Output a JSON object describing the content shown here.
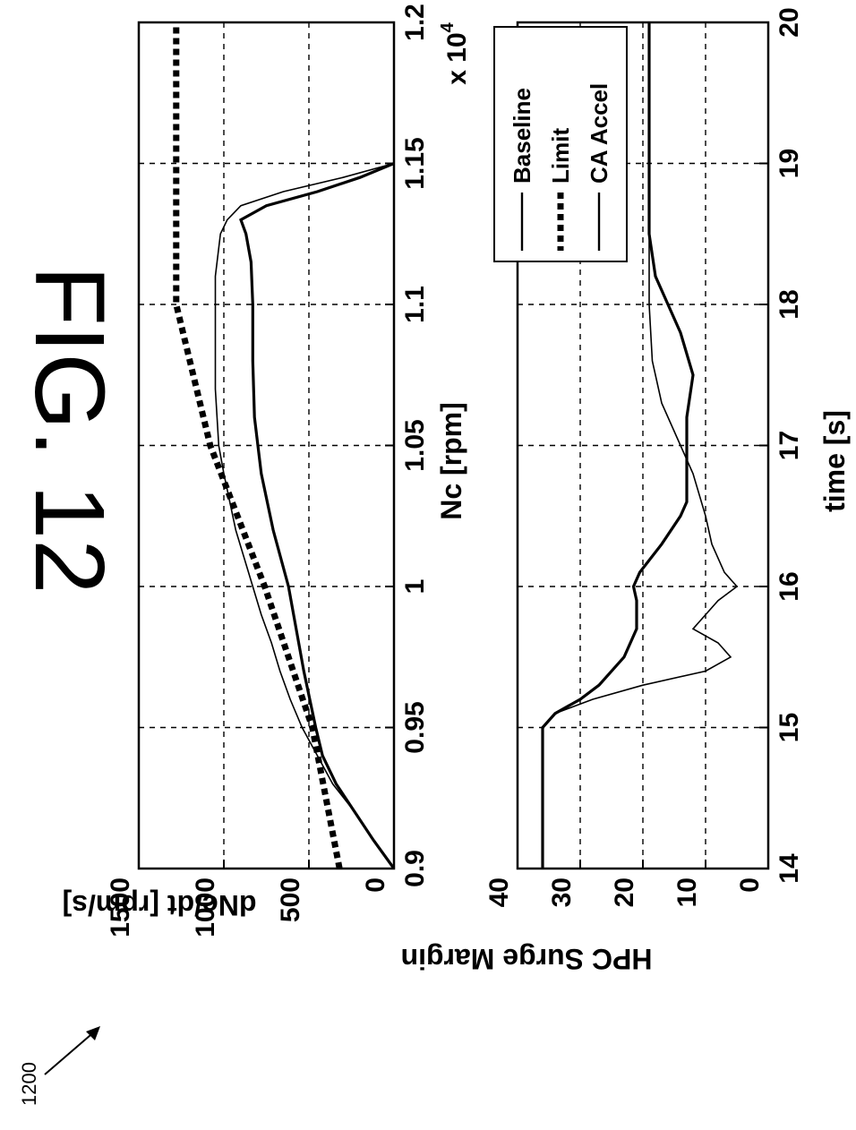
{
  "figure": {
    "title": "FIG. 12",
    "ref": "1200"
  },
  "chart_data": [
    {
      "type": "line",
      "xlabel": "Nc [rpm]",
      "ylabel": "dNc/dt [rpm/s]",
      "x_multiplier": "x 10",
      "x_multiplier_exp": "4",
      "xlim": [
        0.9,
        1.2
      ],
      "ylim": [
        0,
        1500
      ],
      "xticks": [
        0.9,
        0.95,
        1,
        1.05,
        1.1,
        1.15,
        1.2
      ],
      "xtick_labels": [
        "0.9",
        "0.95",
        "1",
        "1.05",
        "1.1",
        "1.15",
        "1.2"
      ],
      "yticks": [
        0,
        500,
        1000,
        1500
      ],
      "ytick_labels": [
        "0",
        "500",
        "1000",
        "1500"
      ],
      "grid": true,
      "series": [
        {
          "name": "Baseline",
          "style": "thin",
          "x": [
            0.9,
            0.91,
            0.92,
            0.93,
            0.94,
            0.95,
            0.96,
            0.97,
            0.98,
            0.99,
            1.0,
            1.02,
            1.04,
            1.05,
            1.07,
            1.09,
            1.11,
            1.125,
            1.13,
            1.135,
            1.14,
            1.145,
            1.15
          ],
          "y": [
            0,
            120,
            230,
            360,
            450,
            540,
            610,
            670,
            720,
            780,
            830,
            930,
            1000,
            1030,
            1050,
            1050,
            1050,
            1020,
            980,
            900,
            650,
            300,
            0
          ]
        },
        {
          "name": "Limit",
          "style": "dotted",
          "x": [
            0.9,
            0.95,
            1.0,
            1.05,
            1.1,
            1.15,
            1.2
          ],
          "y": [
            320,
            480,
            760,
            1080,
            1280,
            1280,
            1280
          ]
        },
        {
          "name": "CA Accel",
          "style": "thick",
          "x": [
            0.9,
            0.91,
            0.92,
            0.93,
            0.94,
            0.95,
            0.97,
            1.0,
            1.02,
            1.04,
            1.06,
            1.08,
            1.1,
            1.115,
            1.125,
            1.13,
            1.135,
            1.14,
            1.145,
            1.15
          ],
          "y": [
            0,
            120,
            230,
            340,
            420,
            460,
            530,
            620,
            710,
            780,
            820,
            830,
            830,
            840,
            870,
            900,
            750,
            450,
            200,
            0
          ]
        }
      ]
    },
    {
      "type": "line",
      "xlabel": "time [s]",
      "ylabel": "HPC Surge Margin",
      "xlim": [
        14,
        20
      ],
      "ylim": [
        0,
        40
      ],
      "xticks": [
        14,
        15,
        16,
        17,
        18,
        19,
        20
      ],
      "xtick_labels": [
        "14",
        "15",
        "16",
        "17",
        "18",
        "19",
        "20"
      ],
      "yticks": [
        0,
        10,
        20,
        30,
        40
      ],
      "ytick_labels": [
        "0",
        "10",
        "20",
        "30",
        "40"
      ],
      "grid": true,
      "legend": {
        "position": "top-right",
        "entries": [
          "Baseline",
          "Limit",
          "CA Accel"
        ]
      },
      "series": [
        {
          "name": "Baseline",
          "style": "thin",
          "x": [
            14,
            15,
            15.1,
            15.2,
            15.3,
            15.4,
            15.5,
            15.6,
            15.7,
            15.8,
            15.9,
            16.0,
            16.1,
            16.3,
            16.5,
            16.8,
            17.0,
            17.3,
            17.6,
            18.0,
            18.5,
            19.0,
            20.0
          ],
          "y": [
            36,
            36,
            34,
            28,
            20,
            10,
            6,
            8,
            12,
            10,
            8,
            5,
            7,
            9,
            10,
            12,
            14,
            17,
            18.5,
            19,
            19,
            19,
            19
          ]
        },
        {
          "name": "CA Accel",
          "style": "thick",
          "x": [
            14,
            15,
            15.1,
            15.2,
            15.3,
            15.5,
            15.7,
            15.9,
            16.0,
            16.1,
            16.3,
            16.5,
            16.6,
            17.0,
            17.2,
            17.5,
            17.8,
            18.0,
            18.2,
            18.5,
            19.0,
            20.0
          ],
          "y": [
            36,
            36,
            34,
            30,
            27,
            23,
            21,
            21,
            21.5,
            20.5,
            17,
            14,
            13,
            13,
            13,
            12,
            14,
            16,
            18,
            19,
            19,
            19
          ]
        }
      ]
    }
  ]
}
